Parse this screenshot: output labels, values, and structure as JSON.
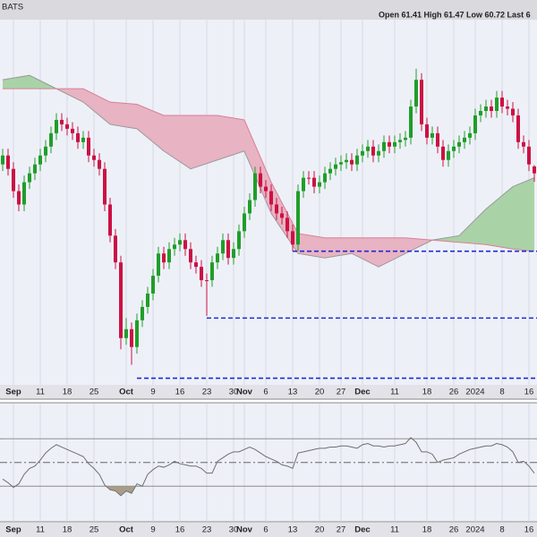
{
  "chart_data": [
    {
      "type": "candlestick",
      "header": {
        "source": "BATS",
        "quote": "Open 61.41  High 61.47  Low 60.72  Last 6"
      },
      "categories": [
        null,
        null,
        "Sep",
        null,
        null,
        null,
        null,
        "11",
        null,
        null,
        null,
        null,
        "18",
        null,
        null,
        null,
        null,
        "25",
        null,
        null,
        null,
        null,
        null,
        "Oct",
        null,
        null,
        null,
        null,
        "9",
        null,
        null,
        null,
        null,
        "16",
        null,
        null,
        null,
        null,
        "23",
        null,
        null,
        null,
        null,
        "30",
        null,
        "Nov",
        null,
        null,
        null,
        "6",
        null,
        null,
        null,
        null,
        "13",
        null,
        null,
        null,
        null,
        "20",
        null,
        null,
        null,
        "27",
        null,
        null,
        null,
        "Dec",
        null,
        null,
        null,
        null,
        null,
        "11",
        null,
        null,
        null,
        null,
        null,
        "18",
        null,
        null,
        null,
        null,
        "26",
        null,
        null,
        null,
        "2024",
        null,
        null,
        null,
        null,
        "8",
        null,
        null,
        null,
        null,
        "16",
        null
      ],
      "open": [
        61.5,
        61.9,
        61.3,
        60.3,
        59.7,
        60.7,
        61.1,
        61.5,
        61.9,
        62.3,
        62.9,
        63.5,
        63.3,
        63.1,
        62.9,
        62.5,
        62.7,
        61.9,
        61.7,
        61.3,
        59.7,
        58.3,
        57.1,
        53.7,
        54.1,
        53.3,
        54.5,
        55.1,
        55.7,
        56.5,
        57.5,
        57.1,
        57.7,
        57.9,
        58.1,
        57.7,
        57.1,
        56.9,
        56.3,
        56.3,
        57.1,
        57.5,
        58.1,
        57.3,
        57.7,
        58.5,
        59.3,
        59.9,
        61.1,
        60.5,
        60.3,
        59.7,
        59.3,
        59.1,
        58.5,
        57.9,
        60.3,
        60.9,
        60.9,
        60.5,
        60.7,
        61.1,
        61.3,
        61.5,
        61.6,
        61.7,
        61.5,
        61.9,
        62.1,
        62.3,
        61.9,
        62.1,
        62.5,
        62.3,
        62.5,
        62.6,
        62.7,
        64.1,
        65.3,
        63.3,
        62.7,
        62.9,
        62.3,
        61.7,
        62.1,
        62.3,
        62.5,
        62.7,
        62.9,
        63.7,
        63.9,
        64.1,
        63.9,
        64.5,
        64.1,
        64.0,
        63.7,
        62.5,
        62.3,
        61.41
      ],
      "high": [
        62.2,
        62.2,
        61.6,
        60.6,
        61.0,
        61.4,
        61.8,
        62.2,
        62.6,
        63.2,
        63.8,
        63.8,
        63.6,
        63.4,
        63.2,
        63.0,
        63.0,
        62.2,
        62.0,
        61.6,
        60.0,
        58.6,
        57.4,
        54.6,
        54.4,
        54.8,
        55.4,
        56.0,
        56.8,
        57.8,
        57.8,
        58.0,
        58.2,
        58.4,
        58.4,
        58.0,
        57.4,
        57.2,
        56.6,
        57.4,
        57.8,
        58.4,
        58.4,
        58.0,
        58.8,
        59.6,
        60.2,
        61.4,
        61.4,
        60.8,
        60.6,
        60.0,
        59.6,
        59.4,
        58.8,
        60.6,
        61.2,
        61.2,
        61.2,
        61.0,
        61.4,
        61.6,
        61.8,
        61.9,
        62.0,
        62.0,
        62.2,
        62.4,
        62.6,
        62.6,
        62.4,
        62.8,
        62.8,
        62.8,
        62.9,
        63.0,
        64.4,
        65.8,
        65.6,
        63.6,
        63.2,
        63.2,
        62.6,
        62.4,
        62.6,
        62.8,
        63.0,
        63.2,
        64.0,
        64.2,
        64.4,
        64.4,
        64.8,
        64.8,
        64.4,
        64.3,
        64.0,
        62.8,
        62.6,
        61.47
      ],
      "low": [
        61.2,
        61.0,
        60.0,
        59.4,
        59.4,
        60.4,
        60.8,
        61.2,
        61.6,
        62.0,
        62.6,
        63.0,
        62.8,
        62.6,
        62.2,
        62.2,
        61.6,
        61.4,
        61.0,
        59.4,
        58.0,
        56.8,
        53.2,
        53.4,
        52.5,
        53.0,
        54.2,
        54.8,
        55.4,
        56.2,
        56.8,
        56.8,
        57.4,
        57.6,
        57.4,
        56.8,
        56.6,
        56.0,
        54.7,
        56.0,
        56.8,
        57.2,
        57.0,
        57.0,
        57.4,
        58.2,
        59.0,
        59.6,
        60.2,
        60.0,
        59.4,
        59.0,
        58.8,
        58.2,
        57.6,
        57.6,
        60.0,
        60.6,
        60.2,
        60.2,
        60.4,
        60.8,
        61.0,
        61.2,
        61.3,
        61.2,
        61.2,
        61.6,
        61.8,
        61.6,
        61.6,
        61.8,
        62.0,
        62.0,
        62.2,
        62.3,
        62.4,
        63.8,
        63.0,
        62.4,
        62.4,
        62.0,
        61.4,
        61.4,
        61.8,
        62.0,
        62.2,
        62.4,
        62.6,
        63.4,
        63.6,
        63.6,
        63.6,
        63.8,
        63.7,
        63.4,
        62.2,
        62.0,
        61.2,
        60.72
      ],
      "close": [
        61.9,
        61.3,
        60.3,
        59.7,
        60.7,
        61.1,
        61.5,
        61.9,
        62.3,
        62.9,
        63.5,
        63.3,
        63.1,
        62.9,
        62.5,
        62.7,
        61.9,
        61.7,
        61.3,
        59.7,
        58.3,
        57.1,
        53.7,
        54.1,
        53.3,
        54.5,
        55.1,
        55.7,
        56.5,
        57.5,
        57.1,
        57.7,
        57.9,
        58.1,
        57.7,
        57.1,
        56.9,
        56.3,
        56.3,
        57.1,
        57.5,
        58.1,
        57.3,
        57.7,
        58.5,
        59.3,
        59.9,
        61.1,
        60.5,
        60.3,
        59.7,
        59.3,
        59.1,
        58.5,
        57.9,
        60.3,
        60.9,
        60.9,
        60.5,
        60.7,
        61.1,
        61.3,
        61.5,
        61.6,
        61.7,
        61.5,
        61.9,
        62.1,
        62.3,
        61.9,
        62.1,
        62.5,
        62.3,
        62.5,
        62.6,
        62.7,
        64.1,
        65.3,
        63.3,
        62.7,
        62.9,
        62.3,
        61.7,
        62.1,
        62.3,
        62.5,
        62.7,
        62.9,
        63.7,
        63.9,
        64.1,
        63.9,
        64.5,
        64.1,
        64.0,
        63.7,
        62.5,
        62.3,
        61.5,
        61.1
      ],
      "up_color": "#1f9e2a",
      "down_color": "#cc1144",
      "ylim": [
        51.6,
        68
      ],
      "cloud": {
        "x_index": [
          0,
          5,
          10,
          15,
          20,
          25,
          30,
          35,
          40,
          45,
          50,
          55,
          60,
          65,
          70,
          75,
          80,
          85,
          90,
          95,
          99
        ],
        "span_a": [
          65.3,
          65.5,
          64.9,
          64.3,
          63.3,
          63.1,
          62.1,
          61.3,
          61.7,
          62.1,
          59.3,
          57.5,
          57.3,
          57.5,
          56.9,
          57.5,
          58.1,
          58.3,
          59.5,
          60.5,
          60.9
        ],
        "span_b": [
          64.9,
          64.9,
          64.9,
          64.9,
          64.3,
          64.2,
          63.7,
          63.7,
          63.7,
          63.5,
          60.7,
          58.4,
          58.2,
          58.2,
          58.2,
          58.2,
          58.1,
          58.0,
          57.9,
          57.7,
          57.6
        ],
        "bull_color": "#a9d3a6",
        "bear_color": "#e8b3c2",
        "span_a_color": "#9a9a9a",
        "span_b_color": "#d97f98"
      },
      "levels": [
        {
          "value": 51.9,
          "start": 25
        },
        {
          "value": 54.6,
          "start": 38
        },
        {
          "value": 57.6,
          "start": 54
        }
      ],
      "level_color": "#1d2bd1"
    },
    {
      "type": "line",
      "categories": [
        null,
        null,
        "Sep",
        null,
        null,
        null,
        null,
        "11",
        null,
        null,
        null,
        null,
        "18",
        null,
        null,
        null,
        null,
        "25",
        null,
        null,
        null,
        null,
        null,
        "Oct",
        null,
        null,
        null,
        null,
        "9",
        null,
        null,
        null,
        null,
        "16",
        null,
        null,
        null,
        null,
        "23",
        null,
        null,
        null,
        null,
        "30",
        null,
        "Nov",
        null,
        null,
        null,
        "6",
        null,
        null,
        null,
        null,
        "13",
        null,
        null,
        null,
        null,
        "20",
        null,
        null,
        null,
        "27",
        null,
        null,
        null,
        "Dec",
        null,
        null,
        null,
        null,
        null,
        "11",
        null,
        null,
        null,
        null,
        null,
        "18",
        null,
        null,
        null,
        null,
        "26",
        null,
        null,
        null,
        "2024",
        null,
        null,
        null,
        null,
        "8",
        null,
        null,
        null,
        null,
        "16",
        null
      ],
      "values": [
        36,
        33,
        29,
        32,
        40,
        45,
        47,
        52,
        58,
        62,
        65,
        63,
        61,
        59,
        57,
        55,
        49,
        45,
        40,
        31,
        27,
        26,
        22,
        26,
        24,
        32,
        30,
        40,
        44,
        47,
        46,
        48,
        51,
        49,
        48,
        47,
        47,
        45,
        41,
        41,
        51,
        54,
        57,
        59,
        59,
        61,
        63,
        61,
        58,
        55,
        53,
        51,
        48,
        47,
        45,
        58,
        59,
        60,
        61,
        62,
        62,
        63,
        63,
        64,
        64,
        63,
        62,
        65,
        66,
        64,
        64,
        63,
        64,
        64,
        65,
        66,
        71,
        67,
        59,
        59,
        57,
        50,
        52,
        53,
        54,
        57,
        59,
        61,
        62,
        63,
        64,
        64,
        66,
        65,
        63,
        59,
        50,
        51,
        47,
        41
      ],
      "color": "#6f6f6f",
      "ylim": [
        0,
        100
      ],
      "reference_lines": [
        70,
        50,
        30
      ],
      "oversold_color": "#a89e88",
      "overbought_color": "#a9d3a6"
    }
  ]
}
